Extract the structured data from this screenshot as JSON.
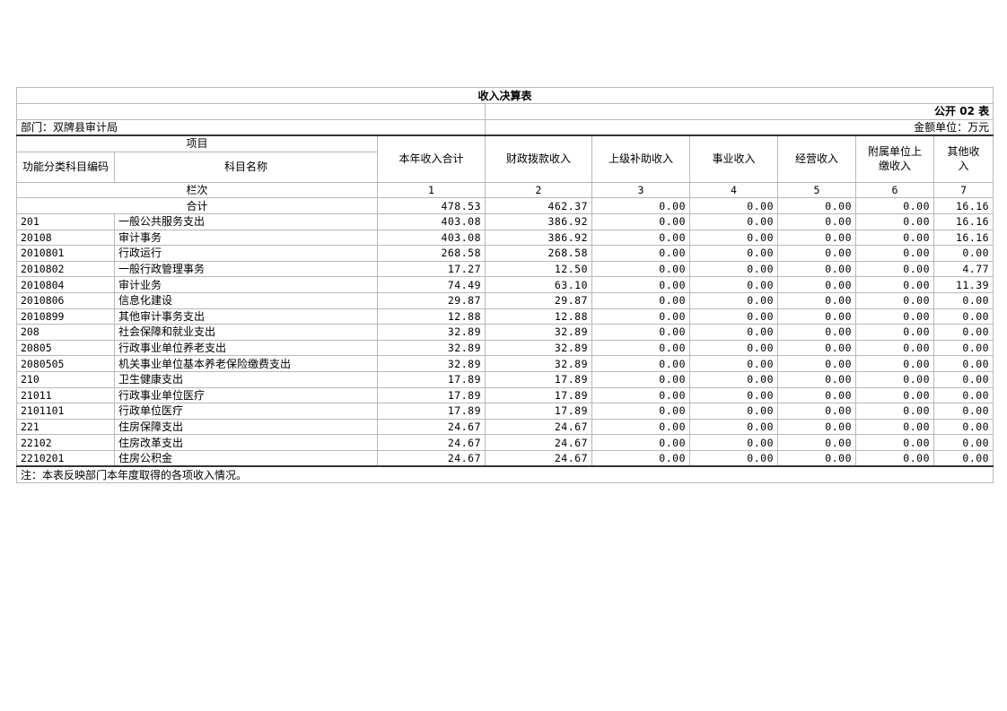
{
  "title": "收入决算表",
  "form_code": "公开 02 表",
  "department": "部门：双牌县审计局",
  "unit": "金额单位：万元",
  "headers": {
    "item": "项目",
    "code": "功能分类科目编码",
    "name": "科目名称",
    "columns": [
      "本年收入合计",
      "财政拨款收入",
      "上级补助收入",
      "事业收入",
      "经营收入",
      "附属单位上缴收入",
      "其他收入"
    ]
  },
  "column_index_label": "栏次",
  "column_indices": [
    "1",
    "2",
    "3",
    "4",
    "5",
    "6",
    "7"
  ],
  "total": {
    "label": "合计",
    "values": [
      "478.53",
      "462.37",
      "0.00",
      "0.00",
      "0.00",
      "0.00",
      "16.16"
    ]
  },
  "rows": [
    {
      "code": "201",
      "name": "一般公共服务支出",
      "values": [
        "403.08",
        "386.92",
        "0.00",
        "0.00",
        "0.00",
        "0.00",
        "16.16"
      ]
    },
    {
      "code": "20108",
      "name": "审计事务",
      "values": [
        "403.08",
        "386.92",
        "0.00",
        "0.00",
        "0.00",
        "0.00",
        "16.16"
      ]
    },
    {
      "code": "2010801",
      "name": "行政运行",
      "values": [
        "268.58",
        "268.58",
        "0.00",
        "0.00",
        "0.00",
        "0.00",
        "0.00"
      ]
    },
    {
      "code": "2010802",
      "name": "一般行政管理事务",
      "values": [
        "17.27",
        "12.50",
        "0.00",
        "0.00",
        "0.00",
        "0.00",
        "4.77"
      ]
    },
    {
      "code": "2010804",
      "name": "审计业务",
      "values": [
        "74.49",
        "63.10",
        "0.00",
        "0.00",
        "0.00",
        "0.00",
        "11.39"
      ]
    },
    {
      "code": "2010806",
      "name": "信息化建设",
      "values": [
        "29.87",
        "29.87",
        "0.00",
        "0.00",
        "0.00",
        "0.00",
        "0.00"
      ]
    },
    {
      "code": "2010899",
      "name": "其他审计事务支出",
      "values": [
        "12.88",
        "12.88",
        "0.00",
        "0.00",
        "0.00",
        "0.00",
        "0.00"
      ]
    },
    {
      "code": "208",
      "name": "社会保障和就业支出",
      "values": [
        "32.89",
        "32.89",
        "0.00",
        "0.00",
        "0.00",
        "0.00",
        "0.00"
      ]
    },
    {
      "code": "20805",
      "name": "行政事业单位养老支出",
      "values": [
        "32.89",
        "32.89",
        "0.00",
        "0.00",
        "0.00",
        "0.00",
        "0.00"
      ]
    },
    {
      "code": "2080505",
      "name": "机关事业单位基本养老保险缴费支出",
      "values": [
        "32.89",
        "32.89",
        "0.00",
        "0.00",
        "0.00",
        "0.00",
        "0.00"
      ]
    },
    {
      "code": "210",
      "name": "卫生健康支出",
      "values": [
        "17.89",
        "17.89",
        "0.00",
        "0.00",
        "0.00",
        "0.00",
        "0.00"
      ]
    },
    {
      "code": "21011",
      "name": "行政事业单位医疗",
      "values": [
        "17.89",
        "17.89",
        "0.00",
        "0.00",
        "0.00",
        "0.00",
        "0.00"
      ]
    },
    {
      "code": "2101101",
      "name": "行政单位医疗",
      "values": [
        "17.89",
        "17.89",
        "0.00",
        "0.00",
        "0.00",
        "0.00",
        "0.00"
      ]
    },
    {
      "code": "221",
      "name": "住房保障支出",
      "values": [
        "24.67",
        "24.67",
        "0.00",
        "0.00",
        "0.00",
        "0.00",
        "0.00"
      ]
    },
    {
      "code": "22102",
      "name": "住房改革支出",
      "values": [
        "24.67",
        "24.67",
        "0.00",
        "0.00",
        "0.00",
        "0.00",
        "0.00"
      ]
    },
    {
      "code": "2210201",
      "name": "住房公积金",
      "values": [
        "24.67",
        "24.67",
        "0.00",
        "0.00",
        "0.00",
        "0.00",
        "0.00"
      ]
    }
  ],
  "note": "注：本表反映部门本年度取得的各项收入情况。"
}
